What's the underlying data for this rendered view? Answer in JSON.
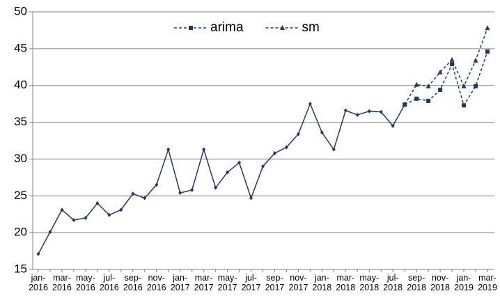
{
  "chart_data": {
    "type": "line",
    "categories": [
      "jan-2016",
      null,
      "mar-2016",
      null,
      "may-2016",
      null,
      "jul-2016",
      null,
      "sep-2016",
      null,
      "nov-2016",
      null,
      "jan-2017",
      null,
      "mar-2017",
      null,
      "may-2017",
      null,
      "jul-2017",
      null,
      "sep-2017",
      null,
      "nov-2017",
      null,
      "jan-2018",
      null,
      "mar-2018",
      null,
      "may-2018",
      null,
      "jul-2018",
      null,
      "sep-2018",
      null,
      "nov-2018",
      null,
      "jan-2019",
      null,
      "mar-2019"
    ],
    "series": [
      {
        "color": "#1f3864",
        "marker": "diamond",
        "dashed": false,
        "values": [
          17.1,
          20.1,
          23.1,
          21.7,
          22.0,
          24.0,
          22.4,
          23.1,
          25.3,
          24.7,
          26.5,
          31.3,
          25.4,
          25.8,
          31.3,
          26.1,
          28.2,
          29.5,
          24.7,
          29.0,
          30.8,
          31.6,
          33.4,
          37.5,
          33.6,
          31.3,
          36.6,
          36.0,
          36.5,
          36.4,
          34.5,
          37.4,
          null,
          null,
          null,
          null,
          null,
          null,
          null
        ]
      },
      {
        "name": "arima",
        "color": "#1f3864",
        "marker": "square",
        "dashed": true,
        "values": [
          null,
          null,
          null,
          null,
          null,
          null,
          null,
          null,
          null,
          null,
          null,
          null,
          null,
          null,
          null,
          null,
          null,
          null,
          null,
          null,
          null,
          null,
          null,
          null,
          null,
          null,
          null,
          null,
          null,
          null,
          null,
          37.4,
          38.2,
          37.9,
          39.4,
          42.9,
          37.3,
          39.9,
          44.6
        ]
      },
      {
        "name": "sm",
        "color": "#1f3864",
        "marker": "triangle",
        "dashed": true,
        "values": [
          null,
          null,
          null,
          null,
          null,
          null,
          null,
          null,
          null,
          null,
          null,
          null,
          null,
          null,
          null,
          null,
          null,
          null,
          null,
          null,
          null,
          null,
          null,
          null,
          null,
          null,
          null,
          null,
          null,
          null,
          null,
          37.4,
          40.1,
          39.9,
          41.8,
          43.5,
          39.9,
          43.4,
          47.8
        ]
      }
    ],
    "ylim": [
      15,
      50
    ],
    "yticks": [
      15,
      20,
      25,
      30,
      35,
      40,
      45,
      50
    ],
    "grid": true,
    "legend": "top"
  }
}
